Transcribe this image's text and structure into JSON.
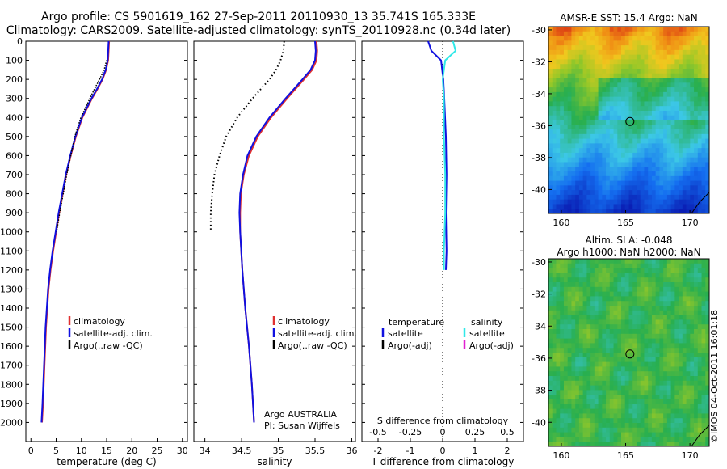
{
  "titles": {
    "line1": "Argo profile: CS 5901619_162 27-Sep-2011 20110930_13 35.741S 165.333E",
    "line2": "Climatology: CARS2009. Satellite-adjusted climatology: synTS_20110928.nc (0.34d later)",
    "sst_title": "AMSR-E SST: 15.4 Argo: NaN",
    "sla_title1": "Altim. SLA: -0.048",
    "sla_title2": "Argo h1000: NaN h2000: NaN",
    "stamp": "©IMOS 04-Oct-2011 16:01:18"
  },
  "colors": {
    "climatology": "#e03030",
    "satellite": "#1010e0",
    "argo": "#000000",
    "salinity_satellite": "#30e8e8",
    "salinity_argo": "#e020d0"
  },
  "chart_data": [
    {
      "type": "line",
      "name": "temperature-panel",
      "xlabel": "temperature (deg C)",
      "ylabel": "",
      "xlim": [
        -1,
        31
      ],
      "ylim": [
        2100,
        0
      ],
      "xticks": [
        "0",
        "5",
        "10",
        "15",
        "20",
        "25",
        "30"
      ],
      "yticks": [
        "0",
        "100",
        "200",
        "300",
        "400",
        "500",
        "600",
        "700",
        "800",
        "900",
        "1000",
        "1100",
        "1200",
        "1300",
        "1400",
        "1500",
        "1600",
        "1700",
        "1800",
        "1900",
        "2000"
      ],
      "legend": {
        "position": "lower-right",
        "entries": [
          "climatology",
          "satellite-adj. clim.",
          "Argo(..raw -QC)"
        ]
      },
      "series": [
        {
          "name": "climatology",
          "depth": [
            0,
            50,
            100,
            150,
            200,
            250,
            300,
            400,
            500,
            600,
            700,
            800,
            900,
            1000,
            1100,
            1200,
            1300,
            1500,
            1700,
            1900,
            2000
          ],
          "values": [
            15.5,
            15.4,
            15.3,
            14.9,
            14.2,
            13.2,
            12.1,
            10.2,
            8.9,
            7.9,
            7.0,
            6.3,
            5.6,
            5.0,
            4.4,
            3.9,
            3.5,
            3.0,
            2.7,
            2.4,
            2.2
          ]
        },
        {
          "name": "satellite-adj. clim.",
          "depth": [
            0,
            50,
            100,
            150,
            200,
            250,
            300,
            400,
            500,
            600,
            700,
            800,
            900,
            1000,
            1100,
            1200,
            1300,
            1500,
            1700,
            1900,
            2000
          ],
          "values": [
            15.4,
            15.3,
            15.2,
            14.8,
            14.1,
            13.1,
            12.0,
            10.1,
            8.8,
            7.8,
            6.9,
            6.2,
            5.5,
            4.9,
            4.3,
            3.8,
            3.4,
            2.9,
            2.6,
            2.3,
            2.1
          ]
        },
        {
          "name": "Argo(..raw -QC)",
          "depth": [
            100,
            150,
            200,
            250,
            300,
            400,
            500,
            600,
            700,
            800,
            900,
            1000
          ],
          "values": [
            15.0,
            14.5,
            13.6,
            12.6,
            11.7,
            9.9,
            8.7,
            7.9,
            7.1,
            6.4,
            5.7,
            5.1
          ]
        }
      ]
    },
    {
      "type": "line",
      "name": "salinity-panel",
      "xlabel": "salinity",
      "ylabel": "",
      "xlim": [
        33.85,
        36.05
      ],
      "ylim": [
        2100,
        0
      ],
      "xticks": [
        "34",
        "34.5",
        "35",
        "35.5",
        "36"
      ],
      "annotation": [
        "Argo AUSTRALIA",
        "PI: Susan Wijffels"
      ],
      "legend": {
        "position": "lower-right",
        "entries": [
          "climatology",
          "satellite-adj. clim.",
          "Argo(..raw -QC)"
        ]
      },
      "series": [
        {
          "name": "climatology",
          "depth": [
            0,
            50,
            100,
            150,
            200,
            300,
            400,
            500,
            600,
            700,
            800,
            900,
            1000,
            1200,
            1400,
            1600,
            1800,
            2000
          ],
          "values": [
            35.52,
            35.53,
            35.52,
            35.46,
            35.35,
            35.12,
            34.9,
            34.72,
            34.6,
            34.53,
            34.49,
            34.48,
            34.48,
            34.51,
            34.55,
            34.6,
            34.64,
            34.67
          ]
        },
        {
          "name": "satellite-adj. clim.",
          "depth": [
            0,
            50,
            100,
            150,
            200,
            300,
            400,
            500,
            600,
            700,
            800,
            900,
            1000,
            1200,
            1400,
            1600,
            1800,
            2000
          ],
          "values": [
            35.5,
            35.51,
            35.5,
            35.44,
            35.33,
            35.1,
            34.88,
            34.7,
            34.58,
            34.52,
            34.48,
            34.47,
            34.48,
            34.51,
            34.55,
            34.6,
            34.64,
            34.67
          ]
        },
        {
          "name": "Argo(..raw -QC)",
          "depth": [
            0,
            50,
            100,
            150,
            200,
            300,
            400,
            500,
            600,
            700,
            800,
            900,
            1000
          ],
          "values": [
            35.08,
            35.07,
            35.03,
            34.97,
            34.88,
            34.65,
            34.44,
            34.29,
            34.2,
            34.13,
            34.1,
            34.08,
            34.08
          ]
        }
      ]
    },
    {
      "type": "line",
      "name": "difference-panel",
      "xlabel": "T difference from climatology",
      "xlabel_top": "S difference from climatology",
      "xlim": [
        -2.5,
        2.5
      ],
      "ylim": [
        2100,
        0
      ],
      "xticks": [
        "-2",
        "-1",
        "0",
        "1",
        "2"
      ],
      "xticks_top": [
        "-0.5",
        "-0.25",
        "0",
        "0.25",
        "0.5"
      ],
      "legend": {
        "position": "lower",
        "headers": [
          "temperature",
          "salinity"
        ],
        "entries": [
          "satellite",
          "Argo(-adj)",
          "satellite",
          "Argo(-adj)"
        ]
      },
      "series": [
        {
          "name": "temperature satellite",
          "depth": [
            0,
            50,
            100,
            200,
            300,
            500,
            700,
            900,
            1100,
            1200
          ],
          "values": [
            -0.45,
            -0.35,
            -0.05,
            0.02,
            0.05,
            0.1,
            0.12,
            0.1,
            0.12,
            0.1
          ]
        },
        {
          "name": "salinity satellite",
          "depth": [
            0,
            50,
            100,
            200,
            300,
            500,
            700,
            900,
            1100,
            1200
          ],
          "values": [
            0.08,
            0.1,
            0.02,
            0.0,
            0.01,
            0.01,
            0.02,
            0.02,
            0.01,
            0.01
          ]
        }
      ]
    },
    {
      "type": "heatmap",
      "name": "sst-map",
      "title": "AMSR-E SST: 15.4 Argo: NaN",
      "xlim": [
        159,
        171.5
      ],
      "ylim": [
        -41.5,
        -29.8
      ],
      "xticks": [
        "160",
        "165",
        "170"
      ],
      "yticks": [
        "-30",
        "-32",
        "-34",
        "-36",
        "-38",
        "-40"
      ],
      "marker": {
        "x": 165.333,
        "y": -35.741
      }
    },
    {
      "type": "heatmap",
      "name": "sla-map",
      "title": "Altim. SLA: -0.048",
      "xlim": [
        159,
        171.5
      ],
      "ylim": [
        -41.5,
        -29.8
      ],
      "xticks": [
        "160",
        "165",
        "170"
      ],
      "yticks": [
        "-30",
        "-32",
        "-34",
        "-36",
        "-38",
        "-40"
      ],
      "marker": {
        "x": 165.333,
        "y": -35.741
      }
    }
  ]
}
